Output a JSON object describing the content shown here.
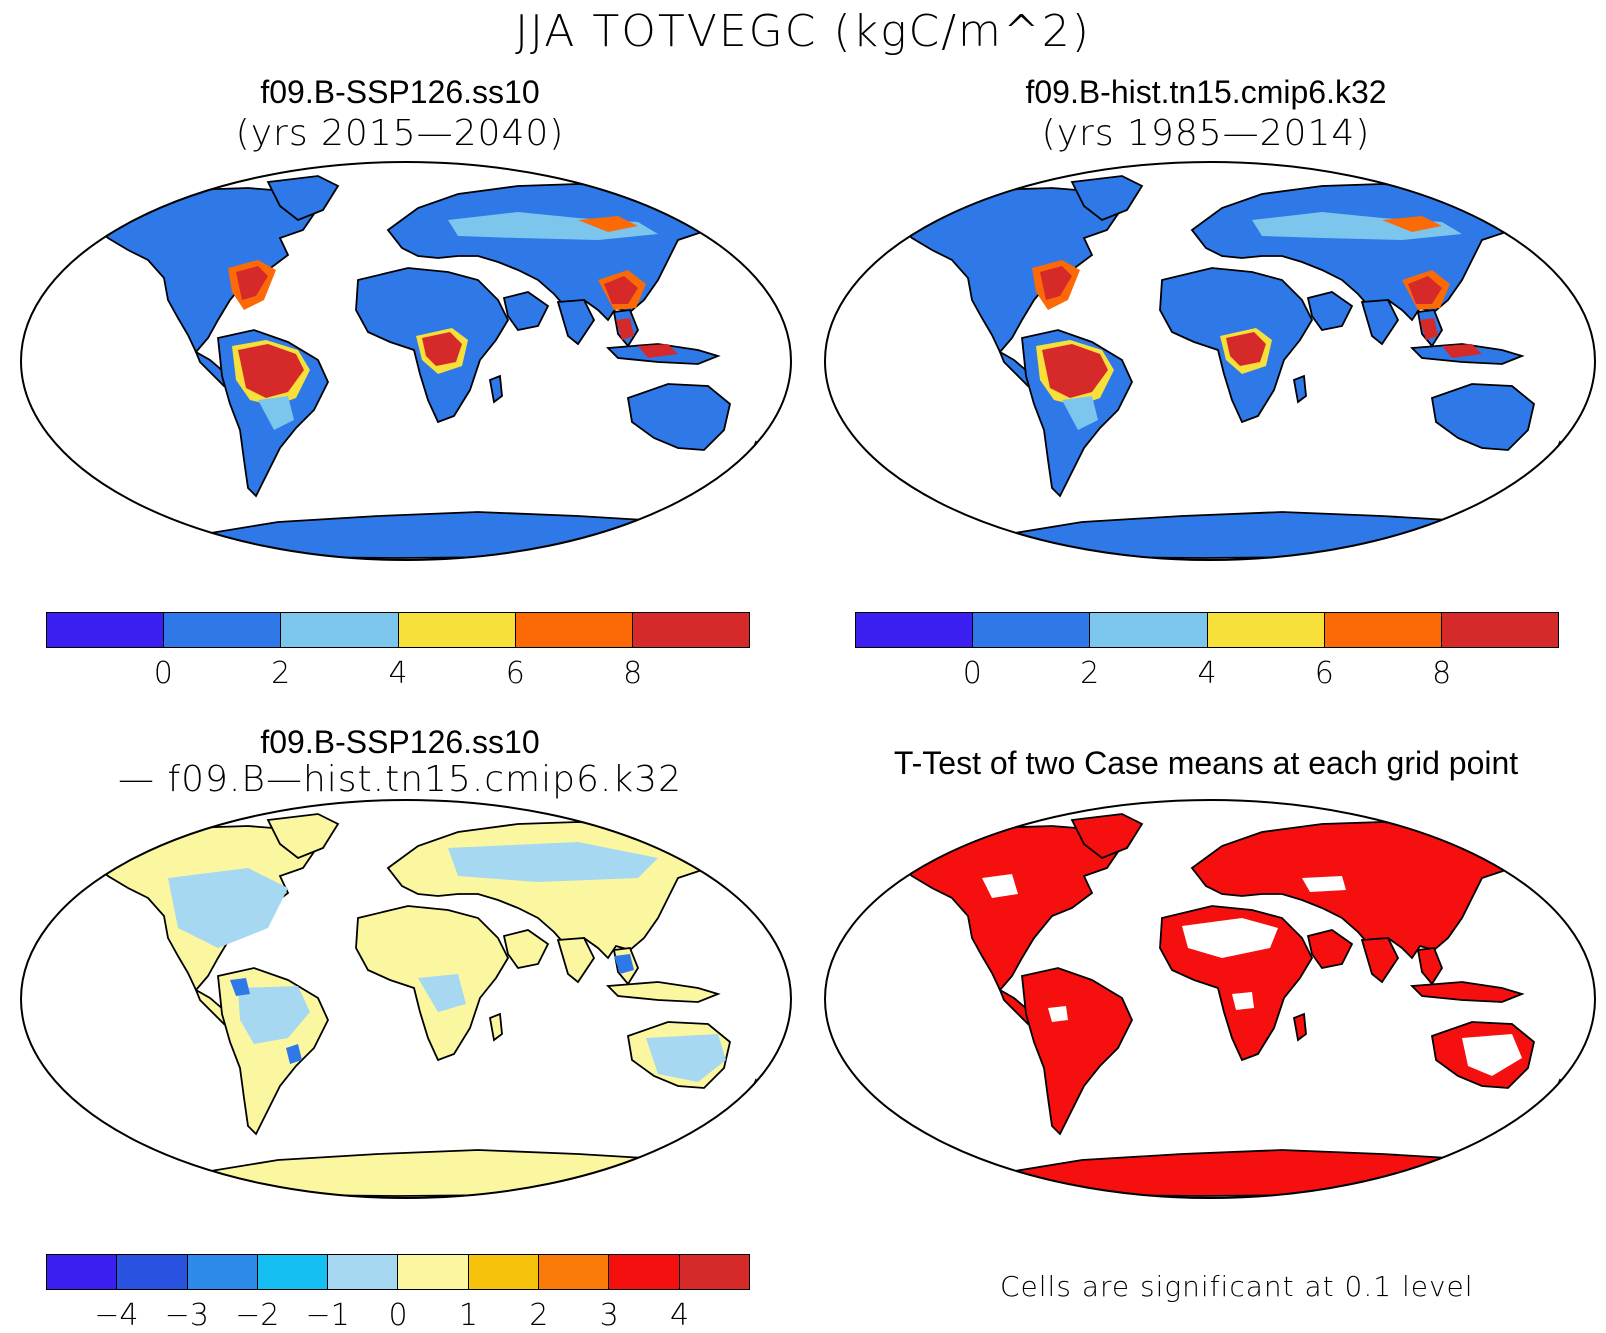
{
  "title": "JJA TOTVEGC (kgC/m^2)",
  "panels": [
    {
      "title": "f09.B-SSP126.ss10",
      "subtitle": "(yrs 2015—2040)"
    },
    {
      "title": "f09.B-hist.tn15.cmip6.k32",
      "subtitle": "(yrs 1985—2014)"
    },
    {
      "title": "f09.B-SSP126.ss10",
      "subtitle": "— f09.B—hist.tn15.cmip6.k32"
    },
    {
      "title": "T-Test of two Case means at each grid point"
    }
  ],
  "colorbar_abs": {
    "colors": [
      "#3a1ff0",
      "#2e78e8",
      "#7cc6ee",
      "#f8e03a",
      "#fb6a06",
      "#d62a2a"
    ],
    "ticks": [
      "0",
      "2",
      "4",
      "6",
      "8"
    ]
  },
  "colorbar_diff": {
    "colors": [
      "#3a1ff0",
      "#2a52e0",
      "#2e8ae8",
      "#16bff2",
      "#a6d8f2",
      "#fbf7a0",
      "#f7c20c",
      "#fa7a0a",
      "#f51010",
      "#d62a2a"
    ],
    "ticks": [
      "−4",
      "−3",
      "−2",
      "−1",
      "0",
      "1",
      "2",
      "3",
      "4"
    ]
  },
  "significance_note": "Cells are significant at 0.1 level",
  "map_fills": {
    "abs_land": "#2e78e8",
    "abs_mid": "#7cc6ee",
    "abs_high": "#d62a2a",
    "abs_warm": "#fb6a06",
    "abs_yellow": "#f8e03a",
    "diff_land": "#fbf7a0",
    "diff_neg": "#a6d8f2",
    "diff_strong": "#2e78e8",
    "sig_land": "#f50f0f"
  }
}
